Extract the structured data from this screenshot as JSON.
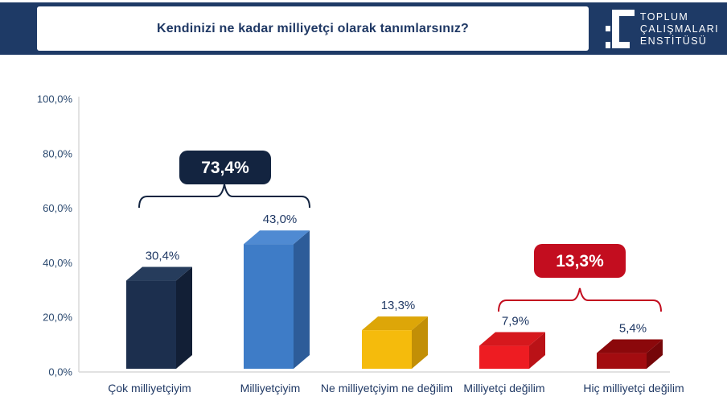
{
  "header": {
    "title": "Kendinizi ne kadar milliyetçi olarak tanımlarsınız?",
    "logo_lines": [
      "TOPLUM",
      "ÇALIŞMALARI",
      "ENSTİTÜSÜ"
    ],
    "colors": {
      "band": "#1e3a66",
      "title_text": "#1f3864",
      "logo_mark": "#ffffff"
    }
  },
  "chart_data": {
    "type": "bar",
    "style": "3d-box",
    "title": "Kendinizi ne kadar milliyetçi olarak tanımlarsınız?",
    "categories": [
      "Çok milliyetçiyim",
      "Milliyetçiyim",
      "Ne milliyetçiyim ne değilim",
      "Milliyetçi değilim",
      "Hiç milliyetçi değilim"
    ],
    "values": [
      30.4,
      43.0,
      13.3,
      7.9,
      5.4
    ],
    "value_labels": [
      "30,4%",
      "43,0%",
      "13,3%",
      "7,9%",
      "5,4%"
    ],
    "series_colors": [
      {
        "front": "#1c2f4e",
        "top": "#263c5c",
        "side": "#121f36"
      },
      {
        "front": "#3e7cc7",
        "top": "#4f8ad2",
        "side": "#2d5c99"
      },
      {
        "front": "#f5bb0c",
        "top": "#dda608",
        "side": "#c28f06"
      },
      {
        "front": "#ee1c22",
        "top": "#d6181d",
        "side": "#ba1217"
      },
      {
        "front": "#a30c10",
        "top": "#8b080b",
        "side": "#750609"
      }
    ],
    "y_ticks": [
      "100,0%",
      "80,0%",
      "60,0%",
      "40,0%",
      "20,0%",
      "0,0%"
    ],
    "ylim": [
      0,
      100
    ],
    "grid": "off",
    "legend": "none",
    "axis_line_color": "#d9d9d9",
    "tick_text_color": "#2c4a70",
    "label_text_color": "#1f3864",
    "groups": [
      {
        "label": "73,4%",
        "value": 73.4,
        "spans": [
          "Çok milliyetçiyim",
          "Milliyetçiyim"
        ],
        "color": "#132440",
        "text_color": "#ffffff"
      },
      {
        "label": "13,3%",
        "value": 13.3,
        "spans": [
          "Milliyetçi değilim",
          "Hiç milliyetçi değilim"
        ],
        "color": "#c30d1f",
        "text_color": "#ffffff"
      }
    ]
  }
}
